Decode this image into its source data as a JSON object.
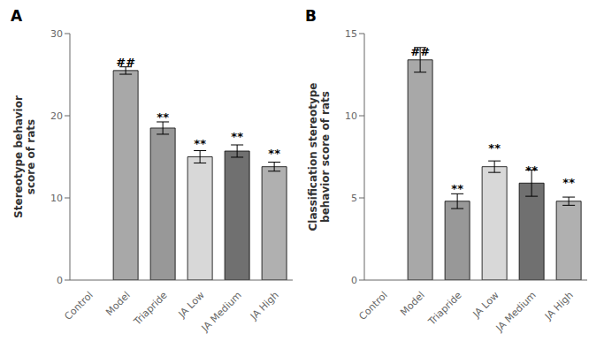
{
  "chart_data": [
    {
      "type": "bar",
      "title": "A",
      "ylabel": "Stereotype behavior\nscore of rats",
      "categories": [
        "Control",
        "Model",
        "Triapride",
        "JA Low",
        "JA Medium",
        "JA High"
      ],
      "values": [
        0.0,
        25.5,
        18.5,
        15.0,
        15.7,
        13.8
      ],
      "errors": [
        0.0,
        0.45,
        0.75,
        0.75,
        0.75,
        0.55
      ],
      "colors": [
        "#c8c8c8",
        "#a8a8a8",
        "#989898",
        "#d8d8d8",
        "#707070",
        "#b0b0b0"
      ],
      "annotations": [
        null,
        "##",
        "**",
        "**",
        "**",
        "**"
      ],
      "ylim": [
        0,
        30
      ],
      "yticks": [
        0,
        10,
        20,
        30
      ]
    },
    {
      "type": "bar",
      "title": "B",
      "ylabel": "Classification stereotype\nbehavior score of rats",
      "categories": [
        "Control",
        "Model",
        "Triapride",
        "JA Low",
        "JA Medium",
        "JA High"
      ],
      "values": [
        0.0,
        13.4,
        4.8,
        6.9,
        5.9,
        4.8
      ],
      "errors": [
        0.0,
        0.75,
        0.45,
        0.35,
        0.8,
        0.25
      ],
      "colors": [
        "#c8c8c8",
        "#a8a8a8",
        "#989898",
        "#d8d8d8",
        "#707070",
        "#b0b0b0"
      ],
      "annotations": [
        null,
        "##",
        "**",
        "**",
        "**",
        "**"
      ],
      "ylim": [
        0,
        15
      ],
      "yticks": [
        0,
        5,
        10,
        15
      ]
    }
  ]
}
